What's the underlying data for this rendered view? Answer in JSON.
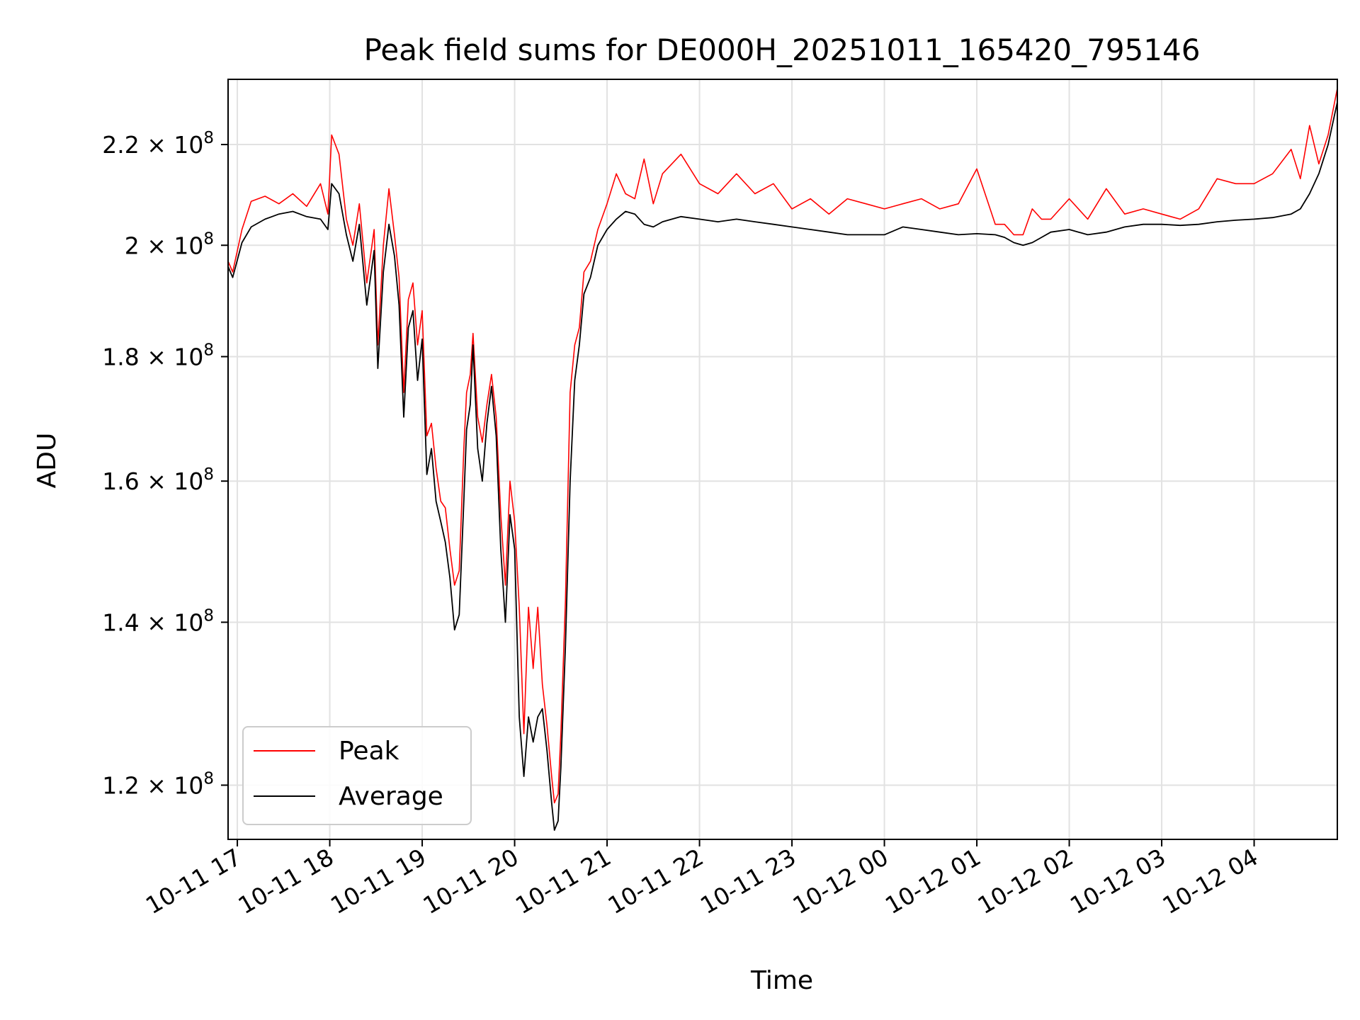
{
  "chart_data": {
    "type": "line",
    "title": "Peak field sums for DE000H_20251011_165420_795146",
    "xlabel": "Time",
    "ylabel": "ADU",
    "x_unit": "hours since 2025-10-11 17:00",
    "xlim": [
      -0.1,
      11.9
    ],
    "ylim": [
      114000000,
      234000000
    ],
    "y_scale": "log",
    "grid": true,
    "legend_position": "lower-left",
    "x_ticks": [
      {
        "value": 0,
        "label": "10-11 17"
      },
      {
        "value": 1,
        "label": "10-11 18"
      },
      {
        "value": 2,
        "label": "10-11 19"
      },
      {
        "value": 3,
        "label": "10-11 20"
      },
      {
        "value": 4,
        "label": "10-11 21"
      },
      {
        "value": 5,
        "label": "10-11 22"
      },
      {
        "value": 6,
        "label": "10-11 23"
      },
      {
        "value": 7,
        "label": "10-12 00"
      },
      {
        "value": 8,
        "label": "10-12 01"
      },
      {
        "value": 9,
        "label": "10-12 02"
      },
      {
        "value": 10,
        "label": "10-12 03"
      },
      {
        "value": 11,
        "label": "10-12 04"
      }
    ],
    "y_ticks": [
      {
        "value": 120000000,
        "mantissa": "1.2",
        "base": "10",
        "exp": "8"
      },
      {
        "value": 140000000,
        "mantissa": "1.4",
        "base": "10",
        "exp": "8"
      },
      {
        "value": 160000000,
        "mantissa": "1.6",
        "base": "10",
        "exp": "8"
      },
      {
        "value": 180000000,
        "mantissa": "1.8",
        "base": "10",
        "exp": "8"
      },
      {
        "value": 200000000,
        "mantissa": "2",
        "base": "10",
        "exp": "8"
      },
      {
        "value": 220000000,
        "mantissa": "2.2",
        "base": "10",
        "exp": "8"
      }
    ],
    "series": [
      {
        "name": "Average",
        "color": "#000000",
        "x": [
          -0.1,
          -0.05,
          0.05,
          0.15,
          0.3,
          0.45,
          0.6,
          0.75,
          0.9,
          0.98,
          1.02,
          1.1,
          1.18,
          1.25,
          1.32,
          1.4,
          1.48,
          1.52,
          1.58,
          1.64,
          1.7,
          1.75,
          1.8,
          1.85,
          1.9,
          1.95,
          2.0,
          2.05,
          2.1,
          2.15,
          2.2,
          2.25,
          2.3,
          2.35,
          2.4,
          2.45,
          2.48,
          2.52,
          2.55,
          2.6,
          2.65,
          2.7,
          2.75,
          2.8,
          2.85,
          2.9,
          2.95,
          3.0,
          3.05,
          3.1,
          3.15,
          3.2,
          3.25,
          3.3,
          3.35,
          3.4,
          3.43,
          3.47,
          3.5,
          3.55,
          3.6,
          3.65,
          3.7,
          3.75,
          3.82,
          3.9,
          4.0,
          4.1,
          4.2,
          4.3,
          4.4,
          4.5,
          4.6,
          4.8,
          5.0,
          5.2,
          5.4,
          5.6,
          5.8,
          6.0,
          6.2,
          6.4,
          6.6,
          6.8,
          7.0,
          7.2,
          7.4,
          7.6,
          7.8,
          8.0,
          8.2,
          8.3,
          8.4,
          8.5,
          8.6,
          8.7,
          8.8,
          9.0,
          9.2,
          9.4,
          9.6,
          9.8,
          10.0,
          10.2,
          10.4,
          10.6,
          10.8,
          11.0,
          11.2,
          11.4,
          11.5,
          11.6,
          11.7,
          11.8,
          11.9
        ],
        "values": [
          196000000,
          194000000,
          200500000,
          203500000,
          205000000,
          206000000,
          206500000,
          205500000,
          205000000,
          203000000,
          212000000,
          210000000,
          202000000,
          197000000,
          204000000,
          189000000,
          199000000,
          178000000,
          195000000,
          204000000,
          198000000,
          189000000,
          170000000,
          185000000,
          188000000,
          176000000,
          183000000,
          161000000,
          165000000,
          157000000,
          154000000,
          151000000,
          146000000,
          139000000,
          141000000,
          157000000,
          168000000,
          172000000,
          182000000,
          165000000,
          160000000,
          169000000,
          175000000,
          167000000,
          150000000,
          140000000,
          155000000,
          150000000,
          128000000,
          121000000,
          128000000,
          125000000,
          128000000,
          129000000,
          124000000,
          118000000,
          115000000,
          116000000,
          122000000,
          137000000,
          160000000,
          176000000,
          182000000,
          191000000,
          194000000,
          200000000,
          203000000,
          205000000,
          206500000,
          206000000,
          204000000,
          203500000,
          204500000,
          205500000,
          205000000,
          204500000,
          205000000,
          204500000,
          204000000,
          203500000,
          203000000,
          202500000,
          202000000,
          202000000,
          202000000,
          203500000,
          203000000,
          202500000,
          202000000,
          202200000,
          202000000,
          201500000,
          200500000,
          200000000,
          200500000,
          201500000,
          202500000,
          203000000,
          202000000,
          202500000,
          203500000,
          204000000,
          204000000,
          203800000,
          204000000,
          204500000,
          204800000,
          205000000,
          205300000,
          206000000,
          207000000,
          210000000,
          214000000,
          220000000,
          229000000
        ]
      },
      {
        "name": "Peak",
        "color": "#ff0000",
        "x": [
          -0.1,
          -0.05,
          0.05,
          0.15,
          0.3,
          0.45,
          0.6,
          0.75,
          0.9,
          0.98,
          1.02,
          1.1,
          1.18,
          1.25,
          1.32,
          1.4,
          1.48,
          1.52,
          1.58,
          1.64,
          1.7,
          1.75,
          1.8,
          1.85,
          1.9,
          1.95,
          2.0,
          2.05,
          2.1,
          2.15,
          2.2,
          2.25,
          2.3,
          2.35,
          2.4,
          2.45,
          2.48,
          2.52,
          2.55,
          2.6,
          2.65,
          2.7,
          2.75,
          2.8,
          2.85,
          2.9,
          2.95,
          3.0,
          3.05,
          3.1,
          3.15,
          3.2,
          3.25,
          3.3,
          3.35,
          3.4,
          3.43,
          3.47,
          3.5,
          3.55,
          3.6,
          3.65,
          3.7,
          3.75,
          3.82,
          3.9,
          4.0,
          4.1,
          4.2,
          4.3,
          4.4,
          4.5,
          4.6,
          4.8,
          5.0,
          5.2,
          5.4,
          5.6,
          5.8,
          6.0,
          6.2,
          6.4,
          6.6,
          6.8,
          7.0,
          7.2,
          7.4,
          7.6,
          7.8,
          8.0,
          8.2,
          8.3,
          8.4,
          8.5,
          8.6,
          8.7,
          8.8,
          9.0,
          9.2,
          9.4,
          9.6,
          9.8,
          10.0,
          10.2,
          10.4,
          10.6,
          10.8,
          11.0,
          11.2,
          11.4,
          11.5,
          11.6,
          11.7,
          11.8,
          11.9
        ],
        "values": [
          197000000,
          195000000,
          203000000,
          208500000,
          209500000,
          208000000,
          210000000,
          207500000,
          212000000,
          206000000,
          222000000,
          218000000,
          205000000,
          200000000,
          208000000,
          193000000,
          203000000,
          182000000,
          200000000,
          211000000,
          202000000,
          194000000,
          174000000,
          190000000,
          193000000,
          182000000,
          188000000,
          167000000,
          169000000,
          162000000,
          157000000,
          156000000,
          150000000,
          145000000,
          147000000,
          165000000,
          174000000,
          177000000,
          184000000,
          170000000,
          166000000,
          172000000,
          177000000,
          170000000,
          155000000,
          145000000,
          160000000,
          154000000,
          142000000,
          126000000,
          142000000,
          134000000,
          142000000,
          132000000,
          127000000,
          121000000,
          118000000,
          119000000,
          126000000,
          143000000,
          174000000,
          182000000,
          185000000,
          195000000,
          197000000,
          203000000,
          208000000,
          214000000,
          210000000,
          209000000,
          217000000,
          208000000,
          214000000,
          218000000,
          212000000,
          210000000,
          214000000,
          210000000,
          212000000,
          207000000,
          209000000,
          206000000,
          209000000,
          208000000,
          207000000,
          208000000,
          209000000,
          207000000,
          208000000,
          215000000,
          204000000,
          204000000,
          202000000,
          202000000,
          207000000,
          205000000,
          205000000,
          209000000,
          205000000,
          211000000,
          206000000,
          207000000,
          206000000,
          205000000,
          207000000,
          213000000,
          212000000,
          212000000,
          214000000,
          219000000,
          213000000,
          224000000,
          216000000,
          222000000,
          232000000
        ]
      }
    ]
  },
  "legend": {
    "items": [
      {
        "label": "Peak",
        "color": "#ff0000"
      },
      {
        "label": "Average",
        "color": "#000000"
      }
    ]
  }
}
